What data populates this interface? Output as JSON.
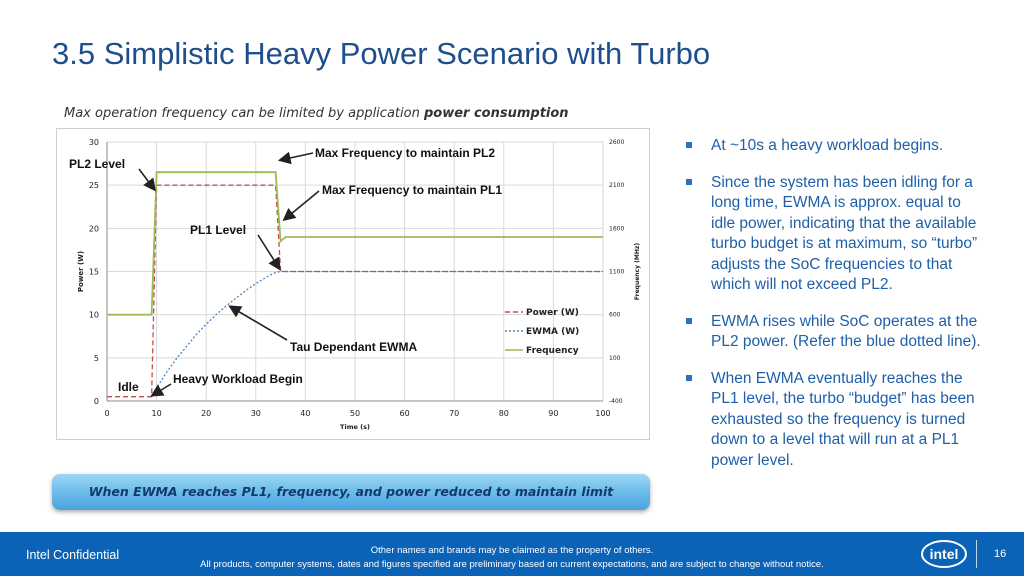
{
  "title": "3.5  Simplistic Heavy Power Scenario with Turbo",
  "subtitle": {
    "text": "Max operation frequency can be limited by application ",
    "bold": "power consumption"
  },
  "chart_data": {
    "type": "line",
    "xlabel": "Time (s)",
    "ylabel": "Power (W)",
    "y2label": "Frequency (MHz)",
    "xlim": [
      0,
      100
    ],
    "ylim": [
      0,
      30
    ],
    "y2lim": [
      -400,
      2600
    ],
    "x_ticks": [
      "0",
      "10",
      "20",
      "30",
      "40",
      "50",
      "60",
      "70",
      "80",
      "90",
      "100"
    ],
    "y_ticks": [
      "0",
      "5",
      "10",
      "15",
      "20",
      "25",
      "30"
    ],
    "y2_ticks": [
      "-400",
      "100",
      "600",
      "1100",
      "1600",
      "2100",
      "2600"
    ],
    "grid": true,
    "legend_position": "bottom-right",
    "series": [
      {
        "name": "Power (W)",
        "axis": "left",
        "color": "#c0504d",
        "dash": "5,3",
        "x": [
          0,
          9,
          10,
          34,
          35,
          100
        ],
        "y": [
          0.5,
          0.5,
          25,
          25,
          15,
          15
        ]
      },
      {
        "name": "EWMA (W)",
        "axis": "left",
        "color": "#4f81bd",
        "dash": "2,2",
        "x": [
          9,
          10,
          12,
          14,
          16,
          18,
          20,
          22,
          24,
          26,
          28,
          30,
          32,
          34,
          35,
          100
        ],
        "y": [
          0.5,
          1.5,
          3.3,
          4.9,
          6.3,
          7.7,
          8.9,
          10.0,
          11.0,
          11.9,
          12.8,
          13.6,
          14.3,
          14.9,
          15,
          15
        ]
      },
      {
        "name": "Frequency",
        "axis": "right",
        "color": "#9bbb59",
        "dash": "",
        "x": [
          0,
          9,
          10,
          34,
          35,
          36,
          100
        ],
        "y": [
          600,
          600,
          2250,
          2250,
          1450,
          1500,
          1500
        ]
      }
    ],
    "annotations": [
      "Max Frequency to maintain PL2",
      "Max Frequency to maintain PL1",
      "PL2 Level",
      "PL1 Level",
      "Tau Dependant EWMA",
      "Heavy Workload Begin",
      "Idle"
    ]
  },
  "bullets": [
    "At ~10s a heavy workload begins.",
    "Since the system has been idling for a long time, EWMA  is approx. equal to idle power, indicating that the available turbo budget is at maximum, so “turbo” adjusts the SoC frequencies to that which will not exceed PL2.",
    "EWMA rises while SoC operates at the PL2  power. (Refer the blue dotted line).",
    "When EWMA eventually reaches the PL1 level, the turbo “budget” has been exhausted so the frequency is turned down to a level that will run at a PL1 power level."
  ],
  "callout": "When EWMA reaches PL1, frequency, and power reduced to maintain limit",
  "footer": {
    "confidential": "Intel Confidential",
    "claim": "Other names and brands may be claimed as the property of others.",
    "disclaimer": "All products, computer systems, dates and figures specified are preliminary based on current expectations, and are subject to change without notice.",
    "logo": "intel",
    "page": "16"
  }
}
